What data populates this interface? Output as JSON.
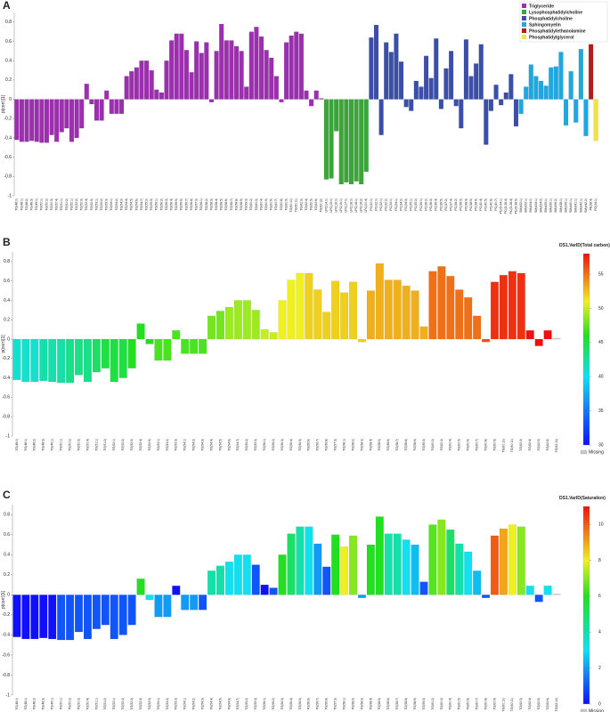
{
  "chart_data": [
    {
      "type": "bar",
      "panel": "A",
      "ylabel": "p(corr)[1]",
      "ylim": [
        -1,
        0.9
      ],
      "yticks": [
        -1,
        -0.8,
        -0.6,
        -0.4,
        -0.2,
        0,
        0.2,
        0.4,
        0.6,
        0.8
      ],
      "series": [
        {
          "name": "Triglyceride",
          "color": "#9b2fae",
          "categories": [
            "TG(48:0)",
            "TG(48:1)",
            "TG(48:2)",
            "TG(48:3)",
            "TG(49:1)",
            "TG(50:1)",
            "TG(50:2)",
            "TG(50:3)",
            "TG(50:4)",
            "TG(51:1)",
            "TG(51:2)",
            "TG(52:1)",
            "TG(52:2)",
            "TG(52:3)",
            "TG(52:4)",
            "TG(52:5)",
            "TG(53:1)",
            "TG(53:2)",
            "TG(53:3)",
            "TG(54:1)",
            "TG(54:2)",
            "TG(54:3)",
            "TG(54:4)",
            "TG(54:5)",
            "TG(54:6)",
            "TG(54:7)",
            "TG(55:2)",
            "TG(55:3)",
            "TG(56:1)",
            "TG(56:2)",
            "TG(56:3)",
            "TG(56:4)",
            "TG(56:5)",
            "TG(56:6)",
            "TG(56:7)",
            "TG(56:8)",
            "TG(57:3)",
            "TG(58:1)",
            "TG(58:2)",
            "TG(58:3)",
            "TG(58:4)",
            "TG(58:5)",
            "TG(58:6)",
            "TG(58:7)",
            "TG(58:8)",
            "TG(58:9)",
            "TG(59:3)",
            "TG(60:2)",
            "TG(60:3)",
            "TG(60:4)",
            "TG(60:5)",
            "TG(60:6)",
            "TG(60:7)",
            "TG(60:8)",
            "TG(60:9)",
            "TG(60:10)",
            "TG(60:11)",
            "TG(62:3)",
            "TG(62:4)",
            "TG(62:5)",
            "TG(62:6)",
            "TG(62:12)"
          ],
          "values": [
            -0.42,
            -0.44,
            -0.44,
            -0.43,
            -0.44,
            -0.45,
            -0.45,
            -0.37,
            -0.44,
            -0.34,
            -0.3,
            -0.44,
            -0.4,
            -0.3,
            0.16,
            -0.05,
            -0.22,
            -0.22,
            0.09,
            -0.15,
            -0.15,
            -0.15,
            0.24,
            0.29,
            0.33,
            0.4,
            0.4,
            0.3,
            0.1,
            0.07,
            0.4,
            0.61,
            0.68,
            0.68,
            0.51,
            0.28,
            0.6,
            0.48,
            0.59,
            -0.03,
            0.5,
            0.78,
            0.61,
            0.61,
            0.55,
            0.5,
            0.13,
            0.7,
            0.75,
            0.65,
            0.51,
            0.43,
            0.24,
            -0.03,
            0.59,
            0.66,
            0.7,
            0.68,
            0.09,
            -0.07,
            0.09,
            0.01
          ]
        },
        {
          "name": "Lysophosphatidylcholine",
          "color": "#3aa63a",
          "categories": [
            "LPC(14:0)",
            "LPC(15:0)",
            "LPC(16:0)",
            "LPC(16:1)",
            "LPC(17:0)",
            "LPC(18:0)",
            "LPC(18:1)",
            "LPC(18:2)",
            "LPC(20:4)"
          ],
          "values": [
            -0.83,
            -0.82,
            -0.33,
            -0.88,
            -0.86,
            -0.88,
            -0.85,
            -0.88,
            -0.75
          ]
        },
        {
          "name": "Phosphatidylcholine",
          "color": "#3b4fa8",
          "categories": [
            "PC(30:0)",
            "PC(32:0)",
            "PC(32:1)",
            "PC(32:2)",
            "PC(33:1)",
            "PC(34:1)",
            "PC(34:2)",
            "PC(34:3)",
            "PC(35:1)",
            "PC(35:2)",
            "PC(36:1)",
            "PC(36:2)",
            "PC(36:3)",
            "PC(36:4)",
            "PC(36:5)",
            "PC(37:2)",
            "PC(37:4)",
            "PC(38:2)",
            "PC(38:3)",
            "PC(38:4)",
            "PC(38:5)",
            "PC(38:6)",
            "PC(40:4)",
            "PC(40:5)",
            "PC(40:6)",
            "PC(40:7)",
            "PC(O-34:1)",
            "PC(O-36:4)",
            "PC(O-38:4)",
            "PC(O-38:5)"
          ],
          "values": [
            0.64,
            0.77,
            -0.37,
            0.59,
            0.49,
            0.68,
            0.39,
            -0.08,
            -0.12,
            0.19,
            0.13,
            0.45,
            0.22,
            0.63,
            -0.1,
            0.32,
            0.5,
            -0.07,
            -0.3,
            0.62,
            0.24,
            0.37,
            0.57,
            -0.47,
            -0.12,
            0.15,
            -0.06,
            0.07,
            0.26,
            -0.28
          ]
        },
        {
          "name": "Sphingomyelin",
          "color": "#1fa8e0",
          "categories": [
            "SM(d32:1)",
            "SM(d33:1)",
            "SM(d34:0)",
            "SM(d34:1)",
            "SM(d34:2)",
            "SM(d35:1)",
            "SM(d36:1)",
            "SM(d36:2)",
            "SM(d38:1)",
            "SM(d39:1)",
            "SM(d40:1)",
            "SM(d41:1)",
            "SM(d42:1)",
            "SM(d42:2)"
          ],
          "values": [
            -0.15,
            0.13,
            0.36,
            0.24,
            0.19,
            0.14,
            0.33,
            0.34,
            0.49,
            -0.27,
            0.29,
            -0.24,
            0.52,
            -0.38
          ]
        },
        {
          "name": "Phosphatidylethanolamine",
          "color": "#b21c1c",
          "categories": [
            "PE(38:4)"
          ],
          "values": [
            0.57
          ]
        },
        {
          "name": "Phosphatidylglycerol",
          "color": "#f2e24a",
          "categories": [
            "PG(34:1)"
          ],
          "values": [
            -0.43
          ]
        }
      ]
    },
    {
      "type": "bar",
      "panel": "B",
      "ylabel": "p(corr)[1]",
      "ylim": [
        -1,
        0.9
      ],
      "yticks": [
        -1,
        -0.8,
        -0.6,
        -0.4,
        -0.2,
        0,
        0.2,
        0.4,
        0.6,
        0.8
      ],
      "colorbar_title": "DS1.VarID(Total carbon)",
      "missing": "Missing",
      "missing_color": "#c8c8c8",
      "colorlim": [
        30,
        58
      ],
      "colorticks": [
        30,
        35,
        40,
        45,
        50,
        55
      ],
      "colormap": [
        {
          "value": 30,
          "color": "#1010ff"
        },
        {
          "value": 40,
          "color": "#10e0f0"
        },
        {
          "value": 46,
          "color": "#20e020"
        },
        {
          "value": 51,
          "color": "#f0f020"
        },
        {
          "value": 58,
          "color": "#f01010"
        }
      ],
      "categories": [
        "TG(48:0)",
        "TG(48:1)",
        "TG(48:2)",
        "TG(48:3)",
        "TG(49:1)",
        "TG(50:1)",
        "TG(50:2)",
        "TG(50:3)",
        "TG(50:4)",
        "TG(51:1)",
        "TG(51:2)",
        "TG(52:1)",
        "TG(52:2)",
        "TG(52:3)",
        "TG(52:4)",
        "TG(52:5)",
        "TG(53:1)",
        "TG(53:2)",
        "TG(53:3)",
        "TG(54:1)",
        "TG(54:2)",
        "TG(54:3)",
        "TG(54:4)",
        "TG(54:5)",
        "TG(54:6)",
        "TG(54:7)",
        "TG(55:2)",
        "TG(55:3)",
        "TG(56:1)",
        "TG(56:2)",
        "TG(56:3)",
        "TG(56:4)",
        "TG(56:5)",
        "TG(56:6)",
        "TG(56:7)",
        "TG(56:8)",
        "TG(57:3)",
        "TG(58:1)",
        "TG(58:2)",
        "TG(58:3)",
        "TG(58:4)",
        "TG(58:5)",
        "TG(58:6)",
        "TG(58:7)",
        "TG(58:8)",
        "TG(58:9)",
        "TG(59:3)",
        "TG(60:2)",
        "TG(60:3)",
        "TG(60:4)",
        "TG(60:5)",
        "TG(60:6)",
        "TG(60:7)",
        "TG(60:8)",
        "TG(60:9)",
        "TG(60:10)",
        "TG(60:11)",
        "TG(62:3)",
        "TG(62:4)",
        "TG(62:5)",
        "TG(62:6)",
        "TG(62:12)"
      ],
      "values": [
        -0.42,
        -0.44,
        -0.44,
        -0.43,
        -0.44,
        -0.45,
        -0.45,
        -0.37,
        -0.44,
        -0.34,
        -0.3,
        -0.44,
        -0.4,
        -0.3,
        0.16,
        -0.05,
        -0.22,
        -0.22,
        0.09,
        -0.15,
        -0.15,
        -0.15,
        0.24,
        0.29,
        0.33,
        0.4,
        0.4,
        0.3,
        0.1,
        0.07,
        0.4,
        0.61,
        0.68,
        0.68,
        0.51,
        0.28,
        0.6,
        0.48,
        0.59,
        -0.03,
        0.5,
        0.78,
        0.61,
        0.61,
        0.55,
        0.5,
        0.13,
        0.7,
        0.75,
        0.65,
        0.51,
        0.43,
        0.24,
        -0.03,
        0.59,
        0.66,
        0.7,
        0.68,
        0.09,
        -0.07,
        0.09,
        0.01
      ],
      "color_values": [
        41,
        41,
        41,
        42,
        42,
        42,
        43,
        43,
        43,
        44,
        45,
        45,
        45,
        46,
        46,
        46,
        47,
        47,
        47,
        47,
        47,
        47,
        48,
        48,
        49,
        49,
        49,
        49,
        50,
        50,
        51,
        51,
        51,
        52,
        52,
        52,
        52,
        52,
        52,
        52,
        53,
        53,
        53,
        53,
        53,
        53,
        53,
        55,
        55,
        55,
        55,
        55,
        55,
        56,
        57,
        57,
        57,
        57,
        58,
        58,
        58,
        null
      ]
    },
    {
      "type": "bar",
      "panel": "C",
      "ylabel": "p(corr)[1]",
      "ylim": [
        -1,
        0.9
      ],
      "yticks": [
        -1,
        -0.8,
        -0.6,
        -0.4,
        -0.2,
        0,
        0.2,
        0.4,
        0.6,
        0.8
      ],
      "colorbar_title": "DS1.VarID(Saturation)",
      "missing": "Missing",
      "missing_color": "#c8c8c8",
      "colorlim": [
        0,
        11
      ],
      "colorticks": [
        0,
        2,
        4,
        6,
        8,
        10
      ],
      "colormap": [
        {
          "value": 0,
          "color": "#1010ff"
        },
        {
          "value": 3,
          "color": "#10e0f0"
        },
        {
          "value": 6,
          "color": "#20e020"
        },
        {
          "value": 8,
          "color": "#f0f020"
        },
        {
          "value": 11,
          "color": "#f01010"
        }
      ],
      "categories": [
        "TG(48:0)",
        "TG(48:1)",
        "TG(48:2)",
        "TG(48:3)",
        "TG(49:1)",
        "TG(50:1)",
        "TG(50:2)",
        "TG(50:3)",
        "TG(50:4)",
        "TG(51:1)",
        "TG(51:2)",
        "TG(52:1)",
        "TG(52:2)",
        "TG(52:3)",
        "TG(52:4)",
        "TG(52:5)",
        "TG(53:1)",
        "TG(53:2)",
        "TG(53:3)",
        "TG(54:1)",
        "TG(54:2)",
        "TG(54:3)",
        "TG(54:4)",
        "TG(54:5)",
        "TG(54:6)",
        "TG(54:7)",
        "TG(55:2)",
        "TG(55:3)",
        "TG(56:1)",
        "TG(56:2)",
        "TG(56:3)",
        "TG(56:4)",
        "TG(56:5)",
        "TG(56:6)",
        "TG(56:7)",
        "TG(56:8)",
        "TG(57:3)",
        "TG(58:1)",
        "TG(58:2)",
        "TG(58:3)",
        "TG(58:4)",
        "TG(58:5)",
        "TG(58:6)",
        "TG(58:7)",
        "TG(58:8)",
        "TG(58:9)",
        "TG(59:3)",
        "TG(60:2)",
        "TG(60:3)",
        "TG(60:4)",
        "TG(60:5)",
        "TG(60:6)",
        "TG(60:7)",
        "TG(60:8)",
        "TG(60:9)",
        "TG(60:10)",
        "TG(60:11)",
        "TG(62:3)",
        "TG(62:4)",
        "TG(62:5)",
        "TG(62:6)",
        "TG(62:12)"
      ],
      "values": [
        -0.42,
        -0.44,
        -0.44,
        -0.43,
        -0.44,
        -0.45,
        -0.45,
        -0.37,
        -0.44,
        -0.34,
        -0.3,
        -0.44,
        -0.4,
        -0.3,
        0.16,
        -0.05,
        -0.22,
        -0.22,
        0.09,
        -0.15,
        -0.15,
        -0.15,
        0.24,
        0.29,
        0.33,
        0.4,
        0.4,
        0.3,
        0.1,
        0.07,
        0.4,
        0.61,
        0.68,
        0.68,
        0.51,
        0.28,
        0.6,
        0.48,
        0.59,
        -0.03,
        0.5,
        0.78,
        0.61,
        0.61,
        0.55,
        0.5,
        0.13,
        0.7,
        0.75,
        0.65,
        0.51,
        0.43,
        0.24,
        -0.03,
        0.59,
        0.66,
        0.7,
        0.68,
        0.09,
        -0.07,
        0.09,
        0.01
      ],
      "color_values": [
        0,
        0,
        0,
        0,
        0,
        1,
        1,
        1,
        1,
        1,
        1,
        1,
        1,
        1,
        6,
        3,
        2,
        2,
        0,
        2,
        2,
        1,
        4,
        4,
        3,
        3,
        3,
        1,
        0,
        1,
        6,
        5,
        4,
        3,
        2,
        1,
        6,
        8,
        7,
        2,
        6,
        6,
        4,
        4,
        3,
        2.5,
        1,
        6.5,
        7,
        5,
        4,
        3,
        2.5,
        1,
        10,
        9,
        8,
        7,
        3,
        1,
        3,
        null
      ]
    }
  ]
}
